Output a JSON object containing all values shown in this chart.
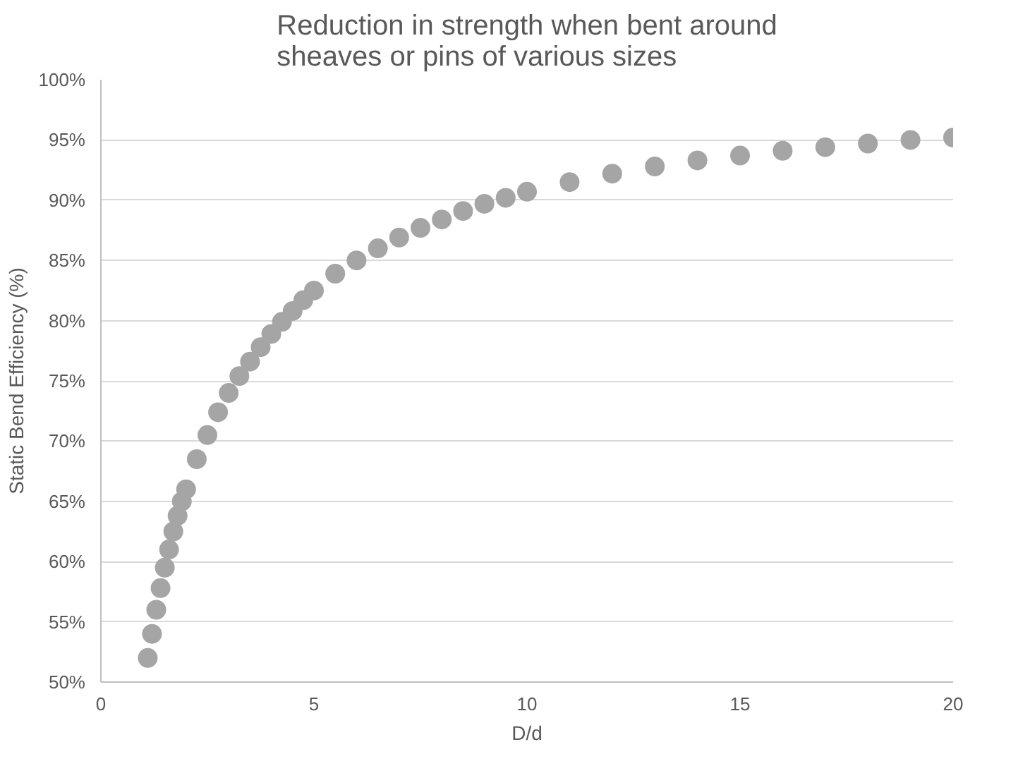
{
  "chart_data": {
    "type": "scatter",
    "title": "Reduction in strength when bent around\nsheaves or pins of various sizes",
    "xlabel": "D/d",
    "ylabel": "Static Bend Efficiency (%)",
    "x": [
      1.1,
      1.2,
      1.3,
      1.4,
      1.5,
      1.6,
      1.7,
      1.8,
      1.9,
      2.0,
      2.25,
      2.5,
      2.75,
      3.0,
      3.25,
      3.5,
      3.75,
      4.0,
      4.25,
      4.5,
      4.75,
      5.0,
      5.5,
      6.0,
      6.5,
      7.0,
      7.5,
      8.0,
      8.5,
      9.0,
      9.5,
      10.0,
      11.0,
      12.0,
      13.0,
      14.0,
      15.0,
      16.0,
      17.0,
      18.0,
      19.0,
      20.0
    ],
    "series": [
      {
        "color": "#a5a5a5",
        "values": [
          52,
          54,
          56,
          57.8,
          59.5,
          61,
          62.5,
          63.8,
          65,
          66,
          68.5,
          70.5,
          72.4,
          74,
          75.4,
          76.6,
          77.8,
          78.9,
          79.9,
          80.8,
          81.7,
          82.5,
          83.9,
          85,
          86,
          86.9,
          87.7,
          88.4,
          89.1,
          89.7,
          90.2,
          90.7,
          91.5,
          92.2,
          92.8,
          93.3,
          93.7,
          94.1,
          94.4,
          94.7,
          95,
          95.2
        ]
      }
    ],
    "xlim": [
      0,
      20
    ],
    "xticks": [
      0,
      5,
      10,
      15,
      20
    ],
    "ylim": [
      50,
      100
    ],
    "yticks": [
      {
        "value": 50,
        "label": "50%"
      },
      {
        "value": 55,
        "label": "55%"
      },
      {
        "value": 60,
        "label": "60%"
      },
      {
        "value": 65,
        "label": "65%"
      },
      {
        "value": 70,
        "label": "70%"
      },
      {
        "value": 75,
        "label": "75%"
      },
      {
        "value": 80,
        "label": "80%"
      },
      {
        "value": 85,
        "label": "85%"
      },
      {
        "value": 90,
        "label": "90%"
      },
      {
        "value": 95,
        "label": "95%"
      },
      {
        "value": 100,
        "label": "100%"
      }
    ],
    "grid": "y",
    "marker": "circle"
  }
}
